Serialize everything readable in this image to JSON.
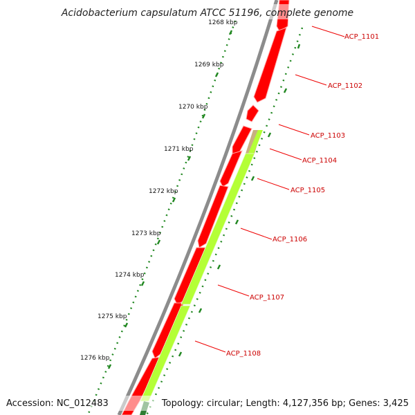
{
  "title": "Acidobacterium capsulatum ATCC 51196, complete genome",
  "footer": {
    "accession": "Accession: NC_012483",
    "summary": "Topology: circular; Length: 4,127,356 bp; Genes: 3,425"
  },
  "colors": {
    "backbone": "#8c8c8c",
    "cds_forward": "#ff0000",
    "cds_reverse": "#b4ff36",
    "other_feature": "#c8b080",
    "label_line": "#ee0000",
    "label_text": "#cc0000",
    "tick": "#228822"
  },
  "ruler_ticks": [
    {
      "label": "1268 kbp"
    },
    {
      "label": "1269 kbp"
    },
    {
      "label": "1270 kbp"
    },
    {
      "label": "1271 kbp"
    },
    {
      "label": "1272 kbp"
    },
    {
      "label": "1273 kbp"
    },
    {
      "label": "1274 kbp"
    },
    {
      "label": "1275 kbp"
    },
    {
      "label": "1276 kbp"
    }
  ],
  "gene_labels": [
    {
      "label": "ACP_1101"
    },
    {
      "label": "ACP_1102"
    },
    {
      "label": "ACP_1103"
    },
    {
      "label": "ACP_1104"
    },
    {
      "label": "ACP_1105"
    },
    {
      "label": "ACP_1106"
    },
    {
      "label": "ACP_1107"
    },
    {
      "label": "ACP_1108"
    }
  ]
}
